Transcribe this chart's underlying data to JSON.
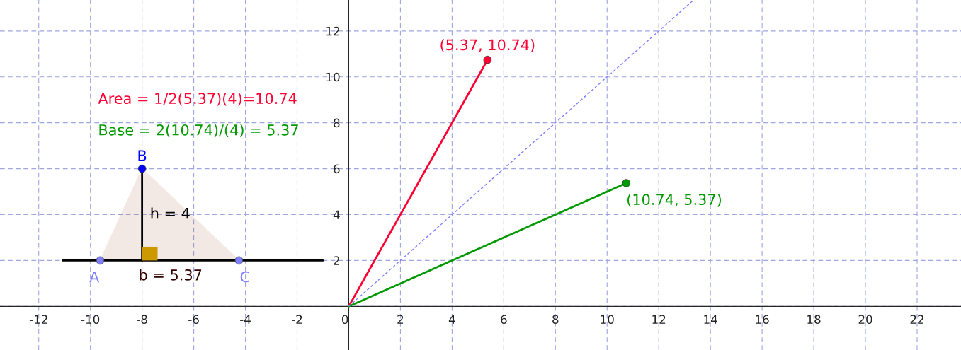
{
  "chart_data": {
    "type": "line",
    "xlim": [
      -13.5,
      23.7
    ],
    "ylim": [
      -1.9,
      13.35
    ],
    "xticks": [
      -12,
      -10,
      -8,
      -6,
      -4,
      -2,
      0,
      2,
      4,
      6,
      8,
      10,
      12,
      14,
      16,
      18,
      20,
      22
    ],
    "yticks": [
      {
        "value": 0,
        "label": null
      },
      2,
      4,
      6,
      8,
      10,
      12
    ],
    "grid": true,
    "legend": false,
    "series": [
      {
        "type": "area",
        "color": "#a0522d",
        "x": [
          -9.62,
          -8,
          -4.25,
          -9.62
        ],
        "values": [
          2,
          6,
          2,
          2
        ]
      },
      {
        "color": "#000000",
        "x": [
          -11.07,
          -1.0
        ],
        "values": [
          2,
          2
        ]
      },
      {
        "color": "#000000",
        "x": [
          -8,
          -8
        ],
        "values": [
          2,
          6
        ]
      },
      {
        "color": "#8080ff",
        "line_style": "dashed",
        "x": [
          0,
          13.35
        ],
        "values": [
          0,
          13.35
        ]
      },
      {
        "color": "#ff0033",
        "x": [
          0,
          5.37
        ],
        "values": [
          0,
          10.74
        ]
      },
      {
        "color": "#009900",
        "x": [
          0,
          10.74
        ],
        "values": [
          0,
          5.37
        ]
      },
      {
        "type": "scatter",
        "marker": "circle",
        "x": [
          -9.62,
          -8,
          -4.25,
          5.37,
          10.74
        ],
        "values": [
          2,
          6,
          2,
          10.74,
          5.37
        ],
        "colors": [
          "#8080ff",
          "#0000ff",
          "#8080ff",
          "#ff0033",
          "#009900"
        ]
      }
    ],
    "annotations": [
      {
        "text": "A",
        "x": -9.62,
        "y": 2
      },
      {
        "text": "B",
        "x": -8,
        "y": 6
      },
      {
        "text": "C",
        "x": -4.25,
        "y": 2
      },
      {
        "text": "h = 4",
        "x": -8,
        "y": 4
      },
      {
        "text": "b = 5.37",
        "x": -6.9,
        "y": 2
      },
      {
        "text": "(5.37, 10.74)",
        "x": 5.37,
        "y": 10.74
      },
      {
        "text": "(10.74, 5.37)",
        "x": 10.74,
        "y": 5.37
      },
      "Area = 1/2(5.37)(4)=10.74",
      "Base = 2(10.74)/(4) = 5.37"
    ]
  }
}
